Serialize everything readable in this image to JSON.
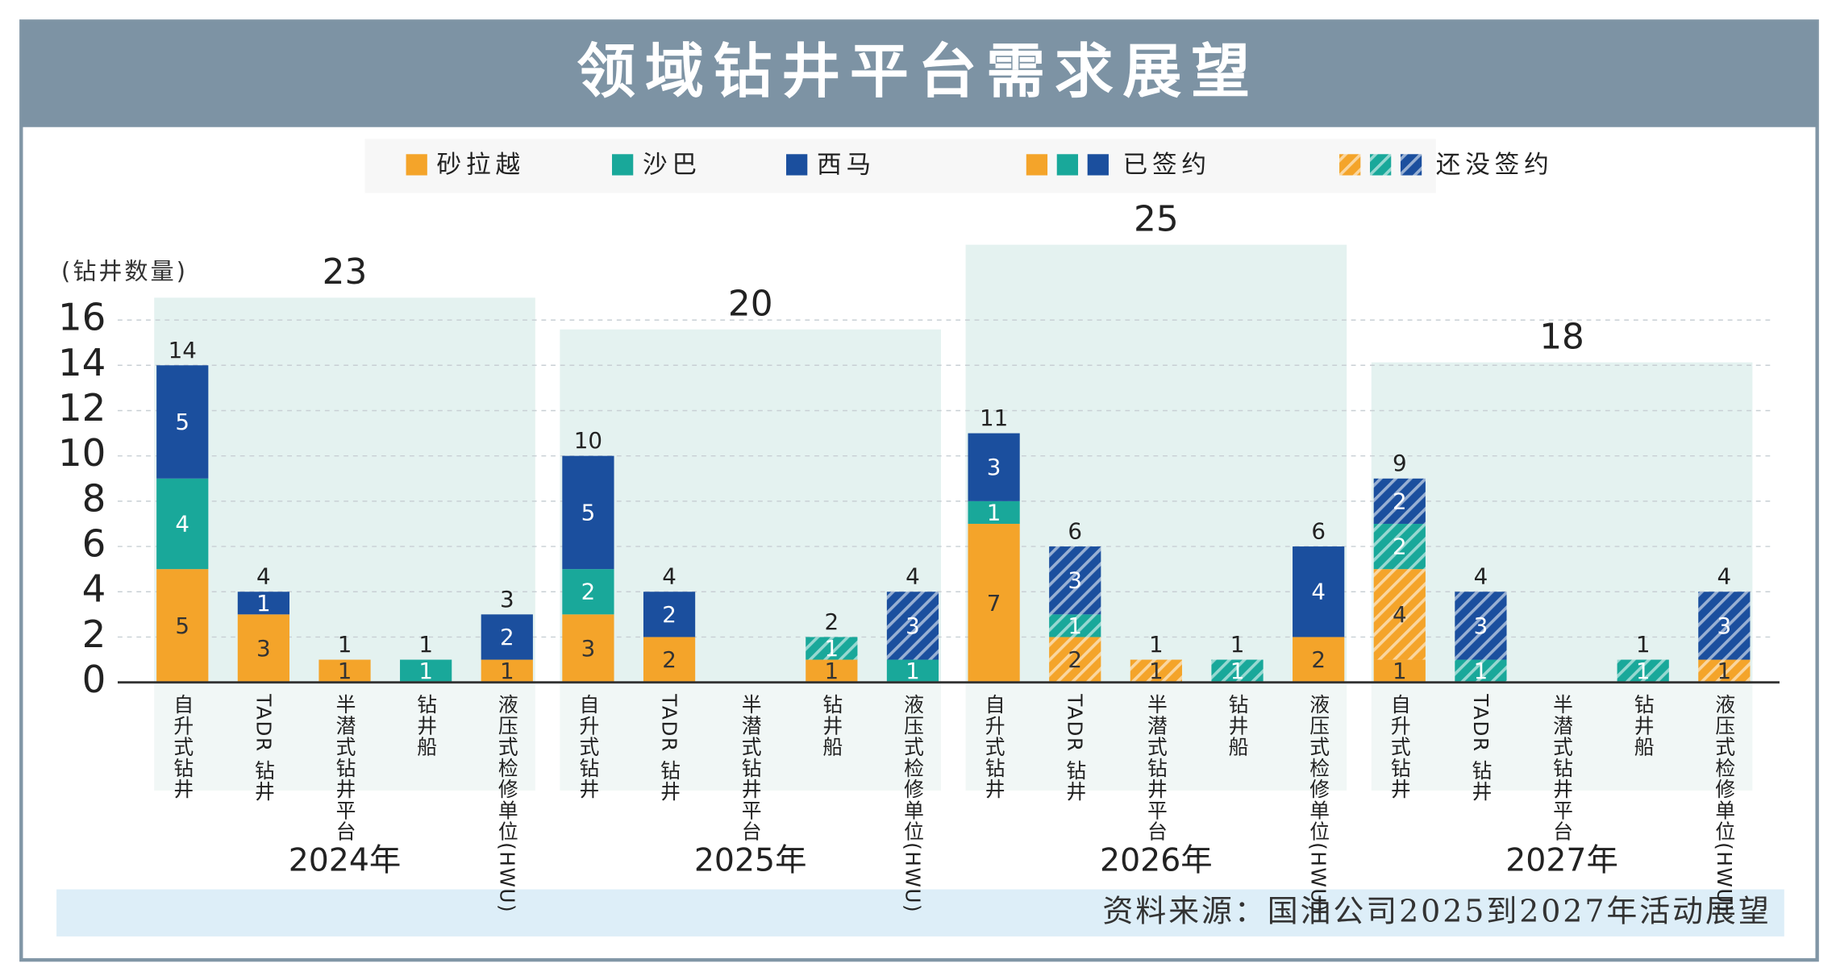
{
  "chart_data": {
    "type": "bar",
    "stacked": true,
    "title": "领域钻井平台需求展望",
    "ylabel": "(钻井数量)",
    "ylim": [
      0,
      16
    ],
    "yticks": [
      0,
      2,
      4,
      6,
      8,
      10,
      12,
      14,
      16
    ],
    "grid": true,
    "legend": {
      "regions": [
        {
          "name": "砂拉越",
          "color": "#f4a42a"
        },
        {
          "name": "沙巴",
          "color": "#19a89a"
        },
        {
          "name": "西马",
          "color": "#1b4f9e"
        }
      ],
      "status": [
        {
          "name": "已签约",
          "hatched": false
        },
        {
          "name": "还没签约",
          "hatched": true
        }
      ]
    },
    "groups": [
      {
        "label": "2024年",
        "total": 23
      },
      {
        "label": "2025年",
        "total": 20
      },
      {
        "label": "2026年",
        "total": 25
      },
      {
        "label": "2027年",
        "total": 18
      }
    ],
    "categories": [
      "自升式钻井",
      "TADR 钻井",
      "半潜式钻井平台",
      "钻井船",
      "液压式检修单位(HWU)",
      "自升式钻井",
      "TADR 钻井",
      "半潜式钻井平台",
      "钻井船",
      "液压式检修单位(HWU)",
      "自升式钻井",
      "TADR 钻井",
      "半潜式钻井平台",
      "钻井船",
      "液压式检修单位(HWU)",
      "自升式钻井",
      "TADR 钻井",
      "半潜式钻井平台",
      "钻井船",
      "液压式检修单位(HWU)"
    ],
    "series": [
      {
        "color": "#f4a42a",
        "hatched": false,
        "values": [
          5,
          3,
          1,
          null,
          1,
          3,
          2,
          null,
          1,
          null,
          7,
          null,
          null,
          null,
          2,
          1,
          null,
          null,
          null,
          null
        ]
      },
      {
        "color": "#f4a42a",
        "hatched": true,
        "values": [
          null,
          null,
          null,
          null,
          null,
          null,
          null,
          null,
          null,
          null,
          null,
          2,
          1,
          null,
          null,
          4,
          null,
          null,
          null,
          1
        ]
      },
      {
        "color": "#19a89a",
        "hatched": false,
        "values": [
          4,
          null,
          null,
          1,
          null,
          2,
          null,
          null,
          null,
          1,
          1,
          null,
          null,
          null,
          null,
          null,
          null,
          null,
          null,
          null
        ]
      },
      {
        "color": "#19a89a",
        "hatched": true,
        "values": [
          null,
          null,
          null,
          null,
          null,
          null,
          null,
          null,
          1,
          null,
          null,
          1,
          null,
          1,
          null,
          2,
          1,
          null,
          1,
          null
        ]
      },
      {
        "color": "#1b4f9e",
        "hatched": false,
        "values": [
          5,
          1,
          null,
          null,
          2,
          5,
          2,
          null,
          null,
          null,
          3,
          null,
          null,
          null,
          4,
          null,
          null,
          null,
          null,
          null
        ]
      },
      {
        "color": "#1b4f9e",
        "hatched": true,
        "values": [
          null,
          null,
          null,
          null,
          null,
          null,
          null,
          null,
          null,
          3,
          null,
          3,
          null,
          null,
          null,
          2,
          3,
          null,
          null,
          3
        ]
      }
    ],
    "totals": [
      14,
      4,
      1,
      1,
      3,
      10,
      4,
      null,
      2,
      4,
      11,
      6,
      1,
      1,
      6,
      9,
      4,
      null,
      1,
      4
    ],
    "source": "资料来源：国油公司2025到2027年活动展望"
  }
}
